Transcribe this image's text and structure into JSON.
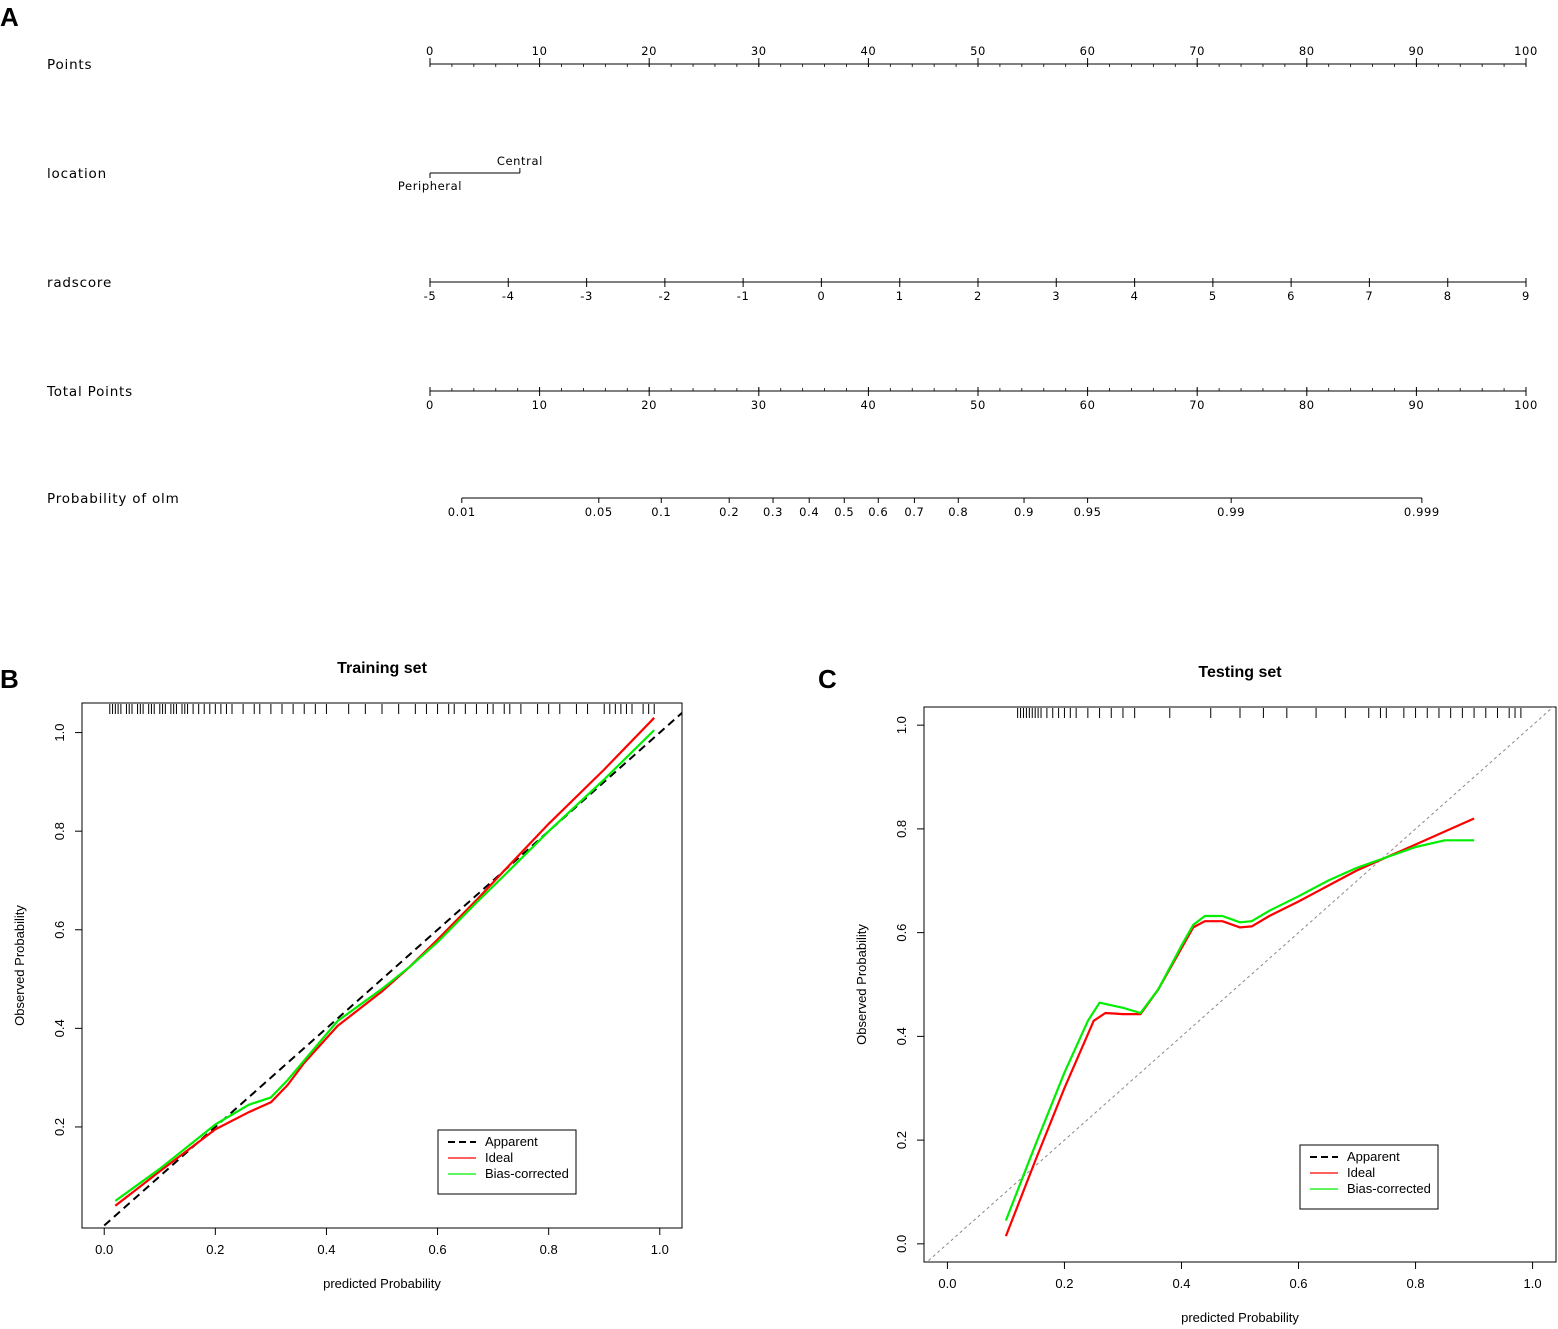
{
  "panels": {
    "a": "A",
    "b": "B",
    "c": "C"
  },
  "nomogram": {
    "rows": [
      {
        "label": "Points",
        "type": "scale",
        "ticks": [
          "0",
          "10",
          "20",
          "30",
          "40",
          "50",
          "60",
          "70",
          "80",
          "90",
          "100"
        ],
        "tick_points": [
          0,
          10,
          20,
          30,
          40,
          50,
          60,
          70,
          80,
          90,
          100
        ],
        "minor_step": 2,
        "labels_above": true
      },
      {
        "label": "location",
        "type": "categorical",
        "categories": [
          "Central",
          "Peripheral"
        ],
        "category_points": [
          8.2,
          0
        ]
      },
      {
        "label": "radscore",
        "type": "scale",
        "ticks": [
          "-5",
          "-4",
          "-3",
          "-2",
          "-1",
          "0",
          "1",
          "2",
          "3",
          "4",
          "5",
          "6",
          "7",
          "8",
          "9"
        ],
        "tick_points": [
          0,
          7.14,
          14.29,
          21.43,
          28.57,
          35.71,
          42.86,
          50,
          57.14,
          64.29,
          71.43,
          78.57,
          85.71,
          92.86,
          100
        ],
        "minor_step": 0,
        "labels_above": false
      },
      {
        "label": "Total Points",
        "type": "scale",
        "ticks": [
          "0",
          "10",
          "20",
          "30",
          "40",
          "50",
          "60",
          "70",
          "80",
          "90",
          "100"
        ],
        "tick_points": [
          0,
          10,
          20,
          30,
          40,
          50,
          60,
          70,
          80,
          90,
          100
        ],
        "minor_step": 2,
        "labels_above": false
      },
      {
        "label": "Probability of olm",
        "type": "prob",
        "ticks": [
          "0.01",
          "0.05",
          "0.1",
          "0.2",
          "0.3",
          "0.4",
          "0.5",
          "0.6",
          "0.7",
          "0.8",
          "0.9",
          "0.95",
          "0.99",
          "0.999"
        ],
        "tick_points": [
          2.9,
          15.4,
          21.1,
          27.3,
          31.3,
          34.6,
          37.8,
          40.9,
          44.2,
          48.2,
          54.2,
          60,
          73.1,
          90.5
        ]
      }
    ]
  },
  "chart_data": [
    {
      "type": "line",
      "title": "Training set",
      "xlabel": "predicted Probability",
      "ylabel": "Observed Probability",
      "xlim": [
        -0.04,
        1.04
      ],
      "ylim": [
        -0.005,
        1.06
      ],
      "xticks": [
        "0.0",
        "0.2",
        "0.4",
        "0.6",
        "0.8",
        "1.0"
      ],
      "xtick_values": [
        0,
        0.2,
        0.4,
        0.6,
        0.8,
        1.0
      ],
      "yticks": [
        "0.2",
        "0.4",
        "0.6",
        "0.8",
        "1.0"
      ],
      "ytick_values": [
        0.2,
        0.4,
        0.6,
        0.8,
        1.0
      ],
      "legend": {
        "position": "bottom-right",
        "entries": [
          "Apparent",
          "Ideal",
          "Bias-corrected"
        ]
      },
      "reference_line": {
        "x": [
          0,
          1.04
        ],
        "y": [
          0,
          1.04
        ],
        "color": "#000000",
        "dash": "dashed"
      },
      "series": [
        {
          "name": "Ideal",
          "color": "#ff0000",
          "x": [
            0.02,
            0.1,
            0.2,
            0.26,
            0.3,
            0.33,
            0.36,
            0.42,
            0.5,
            0.55,
            0.6,
            0.67,
            0.72,
            0.8,
            0.9,
            0.99
          ],
          "y": [
            0.04,
            0.11,
            0.195,
            0.23,
            0.25,
            0.285,
            0.33,
            0.405,
            0.475,
            0.525,
            0.58,
            0.66,
            0.72,
            0.815,
            0.925,
            1.03
          ]
        },
        {
          "name": "Bias-corrected",
          "color": "#00ee00",
          "x": [
            0.02,
            0.1,
            0.2,
            0.26,
            0.3,
            0.33,
            0.36,
            0.42,
            0.5,
            0.55,
            0.6,
            0.67,
            0.72,
            0.8,
            0.9,
            0.99
          ],
          "y": [
            0.05,
            0.115,
            0.205,
            0.245,
            0.26,
            0.295,
            0.335,
            0.415,
            0.48,
            0.525,
            0.575,
            0.655,
            0.71,
            0.8,
            0.905,
            1.005
          ]
        }
      ],
      "rug": [
        0.01,
        0.015,
        0.02,
        0.025,
        0.03,
        0.04,
        0.045,
        0.05,
        0.06,
        0.065,
        0.07,
        0.08,
        0.085,
        0.09,
        0.1,
        0.105,
        0.11,
        0.12,
        0.125,
        0.13,
        0.14,
        0.145,
        0.15,
        0.16,
        0.17,
        0.18,
        0.19,
        0.2,
        0.21,
        0.22,
        0.23,
        0.25,
        0.27,
        0.28,
        0.3,
        0.32,
        0.34,
        0.36,
        0.38,
        0.4,
        0.44,
        0.47,
        0.5,
        0.53,
        0.56,
        0.58,
        0.6,
        0.62,
        0.63,
        0.65,
        0.67,
        0.69,
        0.7,
        0.72,
        0.73,
        0.75,
        0.78,
        0.8,
        0.82,
        0.85,
        0.87,
        0.9,
        0.91,
        0.92,
        0.93,
        0.94,
        0.95,
        0.97,
        0.98,
        0.99
      ]
    },
    {
      "type": "line",
      "title": "Testing set",
      "xlabel": "predicted Probability",
      "ylabel": "Observed Probability",
      "xlim": [
        -0.04,
        1.04
      ],
      "ylim": [
        -0.035,
        1.035
      ],
      "xticks": [
        "0.0",
        "0.2",
        "0.4",
        "0.6",
        "0.8",
        "1.0"
      ],
      "xtick_values": [
        0,
        0.2,
        0.4,
        0.6,
        0.8,
        1.0
      ],
      "yticks": [
        "0.0",
        "0.2",
        "0.4",
        "0.6",
        "0.8",
        "1.0"
      ],
      "ytick_values": [
        0,
        0.2,
        0.4,
        0.6,
        0.8,
        1.0
      ],
      "legend": {
        "position": "bottom-right",
        "entries": [
          "Apparent",
          "Ideal",
          "Bias-corrected"
        ]
      },
      "reference_line": {
        "x": [
          -0.04,
          1.04
        ],
        "y": [
          -0.04,
          1.04
        ],
        "color": "#888888",
        "dash": "dotted"
      },
      "series": [
        {
          "name": "Ideal",
          "color": "#ff0000",
          "x": [
            0.1,
            0.15,
            0.2,
            0.25,
            0.27,
            0.3,
            0.33,
            0.36,
            0.4,
            0.42,
            0.44,
            0.47,
            0.5,
            0.52,
            0.55,
            0.6,
            0.65,
            0.7,
            0.75,
            0.8,
            0.85,
            0.9
          ],
          "y": [
            0.015,
            0.16,
            0.3,
            0.43,
            0.445,
            0.443,
            0.443,
            0.49,
            0.57,
            0.61,
            0.622,
            0.622,
            0.61,
            0.612,
            0.632,
            0.66,
            0.69,
            0.72,
            0.745,
            0.77,
            0.795,
            0.82
          ]
        },
        {
          "name": "Bias-corrected",
          "color": "#00ee00",
          "x": [
            0.1,
            0.15,
            0.2,
            0.24,
            0.26,
            0.3,
            0.33,
            0.36,
            0.4,
            0.42,
            0.44,
            0.47,
            0.5,
            0.52,
            0.55,
            0.6,
            0.65,
            0.7,
            0.75,
            0.8,
            0.85,
            0.9
          ],
          "y": [
            0.045,
            0.19,
            0.33,
            0.43,
            0.465,
            0.455,
            0.445,
            0.49,
            0.575,
            0.615,
            0.632,
            0.632,
            0.62,
            0.622,
            0.642,
            0.67,
            0.7,
            0.725,
            0.745,
            0.765,
            0.778,
            0.778
          ]
        }
      ],
      "rug": [
        0.12,
        0.125,
        0.13,
        0.135,
        0.14,
        0.145,
        0.15,
        0.155,
        0.16,
        0.17,
        0.18,
        0.19,
        0.2,
        0.21,
        0.22,
        0.24,
        0.26,
        0.28,
        0.3,
        0.32,
        0.38,
        0.45,
        0.5,
        0.54,
        0.58,
        0.63,
        0.68,
        0.72,
        0.74,
        0.75,
        0.78,
        0.8,
        0.82,
        0.84,
        0.86,
        0.88,
        0.9,
        0.92,
        0.94,
        0.96,
        0.97,
        0.98
      ]
    }
  ]
}
